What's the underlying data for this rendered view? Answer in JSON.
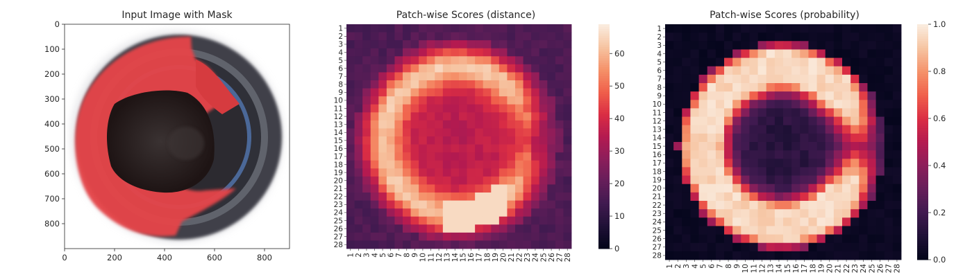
{
  "chart_data": [
    {
      "type": "image",
      "title": "Input Image with Mask",
      "xlim": [
        0,
        900
      ],
      "ylim": [
        900,
        0
      ],
      "xticks": [
        0,
        200,
        400,
        600,
        800
      ],
      "yticks": [
        0,
        100,
        200,
        300,
        400,
        500,
        600,
        700,
        800
      ],
      "colors": {
        "mask": "#e8474b",
        "lens_dark": "#2b1e1e",
        "ring": "#4a4c55",
        "ring_blue": "#5a7fb8"
      }
    },
    {
      "type": "heatmap",
      "title": "Patch-wise Scores (distance)",
      "rows": 28,
      "cols": 28,
      "row_labels": [
        "1",
        "2",
        "3",
        "4",
        "5",
        "6",
        "7",
        "8",
        "9",
        "10",
        "11",
        "12",
        "13",
        "14",
        "15",
        "16",
        "17",
        "18",
        "19",
        "20",
        "21",
        "22",
        "23",
        "24",
        "25",
        "26",
        "27",
        "28"
      ],
      "col_labels": [
        "1",
        "2",
        "3",
        "4",
        "5",
        "6",
        "7",
        "8",
        "9",
        "10",
        "11",
        "12",
        "13",
        "14",
        "15",
        "16",
        "17",
        "18",
        "19",
        "20",
        "21",
        "22",
        "23",
        "24",
        "25",
        "26",
        "27",
        "28"
      ],
      "colorbar": {
        "min": 0,
        "max": 69,
        "ticks": [
          0,
          10,
          20,
          30,
          40,
          50,
          60
        ]
      },
      "colormap": "rocket",
      "pattern": {
        "ring_center": [
          13.8,
          14.5
        ],
        "ring_radius": 9.3,
        "ring_width": 2.3,
        "peak": 68,
        "ring_level": 63,
        "inner_level": 38,
        "outer_level": 22,
        "opening_angle_deg": 0,
        "opening_half_width_deg": 42
      }
    },
    {
      "type": "heatmap",
      "title": "Patch-wise Scores (probability)",
      "rows": 28,
      "cols": 28,
      "row_labels": [
        "1",
        "2",
        "3",
        "4",
        "5",
        "6",
        "7",
        "8",
        "9",
        "10",
        "11",
        "12",
        "13",
        "14",
        "15",
        "16",
        "17",
        "18",
        "19",
        "20",
        "21",
        "22",
        "23",
        "24",
        "25",
        "26",
        "27",
        "28"
      ],
      "col_labels": [
        "1",
        "2",
        "3",
        "4",
        "5",
        "6",
        "7",
        "8",
        "9",
        "10",
        "11",
        "12",
        "13",
        "14",
        "15",
        "16",
        "17",
        "18",
        "19",
        "20",
        "21",
        "22",
        "23",
        "24",
        "25",
        "26",
        "27",
        "28"
      ],
      "colorbar": {
        "min": 0.0,
        "max": 1.0,
        "ticks": [
          0.0,
          0.2,
          0.4,
          0.6,
          0.8,
          1.0
        ],
        "tick_labels": [
          "0.0",
          "0.2",
          "0.4",
          "0.6",
          "0.8",
          "1.0"
        ]
      },
      "colormap": "rocket",
      "pattern": {
        "ring_center": [
          13.8,
          14.5
        ],
        "ring_radius": 9.3,
        "ring_width": 2.6,
        "ring_level": 0.95,
        "inner_level": 0.18,
        "outer_level": 0.02,
        "opening_angle_deg": 0,
        "opening_half_width_deg": 42
      }
    }
  ]
}
